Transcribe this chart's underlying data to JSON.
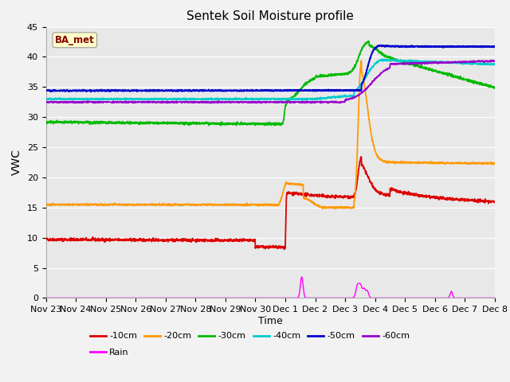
{
  "title": "Sentek Soil Moisture profile",
  "xlabel": "Time",
  "ylabel": "VWC",
  "ylim": [
    0,
    45
  ],
  "xlim": [
    0,
    15
  ],
  "legend_label": "BA_met",
  "fig_bg": "#f2f2f2",
  "plot_bg": "#e8e8e8",
  "grid_color": "#ffffff",
  "series_colors": {
    "-10cm": "#dd0000",
    "-20cm": "#ff9900",
    "-30cm": "#00bb00",
    "-40cm": "#00cccc",
    "-50cm": "#0000cc",
    "-60cm": "#9900cc",
    "Rain": "#ff00ff"
  },
  "x_tick_labels": [
    "Nov 23",
    "Nov 24",
    "Nov 25",
    "Nov 26",
    "Nov 27",
    "Nov 28",
    "Nov 29",
    "Nov 30",
    "Dec 1",
    "Dec 2",
    "Dec 3",
    "Dec 4",
    "Dec 5",
    "Dec 6",
    "Dec 7",
    "Dec 8"
  ],
  "x_ticks": [
    0,
    1,
    2,
    3,
    4,
    5,
    6,
    7,
    8,
    9,
    10,
    11,
    12,
    13,
    14,
    15
  ],
  "y_ticks": [
    0,
    5,
    10,
    15,
    20,
    25,
    30,
    35,
    40,
    45
  ]
}
